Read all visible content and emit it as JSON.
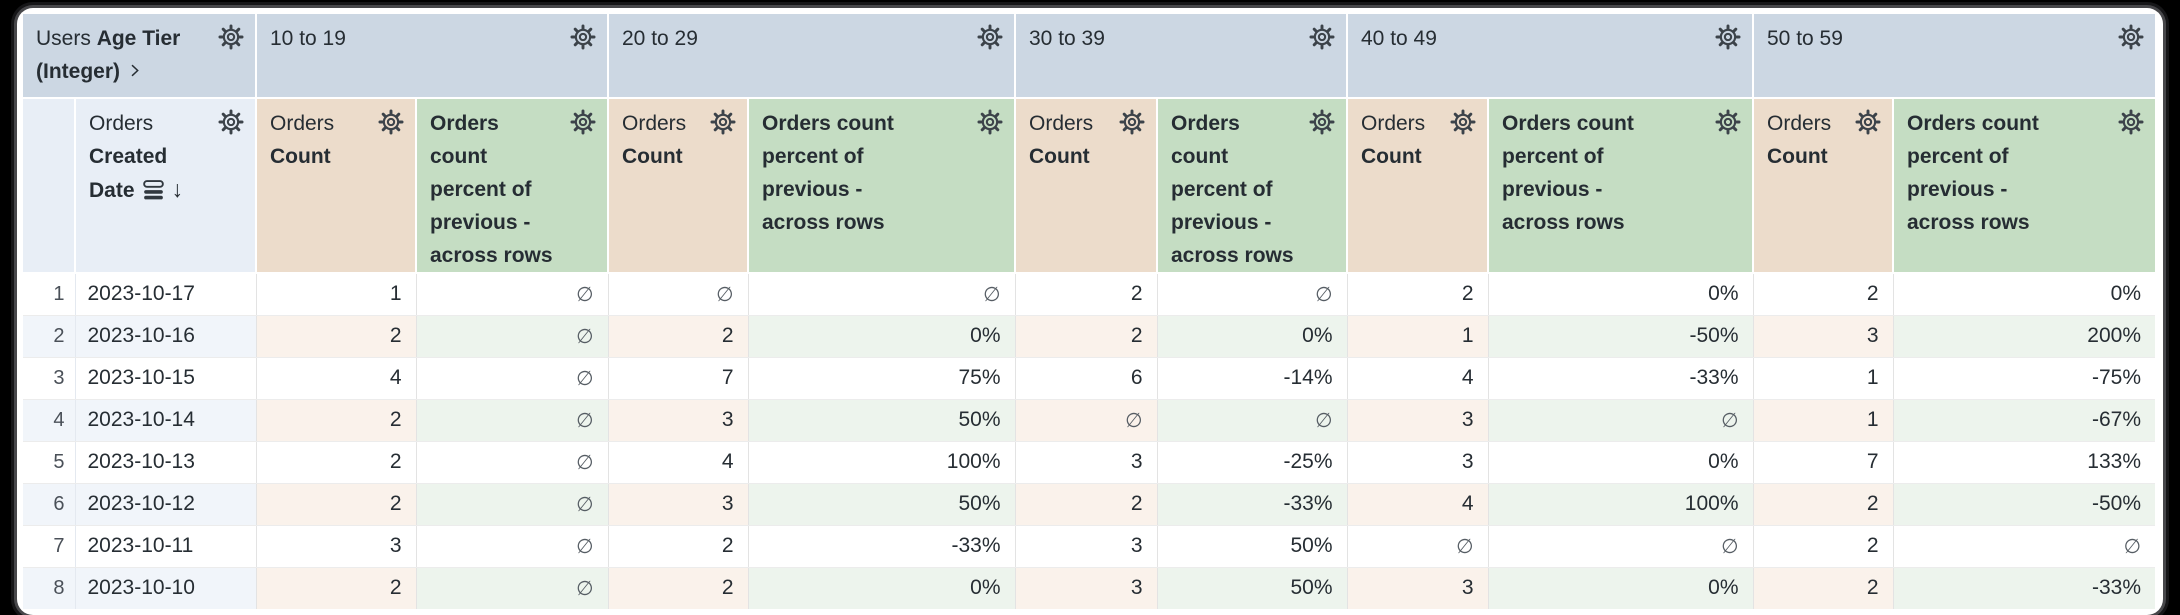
{
  "pivot_header": {
    "corner": {
      "view": "Users",
      "field_line1": "Age Tier",
      "field_line2": "(Integer)"
    },
    "row_dimension": {
      "view": "Orders",
      "field_line1": "Created",
      "field_line2": "Date",
      "sort_arrow": "↓"
    },
    "tiers": [
      "10 to 19",
      "20 to 29",
      "30 to 39",
      "40 to 49",
      "50 to 59"
    ],
    "measure": {
      "view": "Orders",
      "field": "Count"
    },
    "calc_label_lines": [
      "Orders count",
      "percent of",
      "previous -",
      "across rows"
    ]
  },
  "table": {
    "null_symbol": "∅",
    "columns_per_tier": [
      "Orders Count",
      "Orders count percent of previous - across rows"
    ],
    "rows": [
      {
        "num": "1",
        "date": "2023-10-17",
        "values": [
          "1",
          "∅",
          "∅",
          "∅",
          "2",
          "∅",
          "2",
          "0%",
          "2",
          "0%"
        ]
      },
      {
        "num": "2",
        "date": "2023-10-16",
        "values": [
          "2",
          "∅",
          "2",
          "0%",
          "2",
          "0%",
          "1",
          "-50%",
          "3",
          "200%"
        ]
      },
      {
        "num": "3",
        "date": "2023-10-15",
        "values": [
          "4",
          "∅",
          "7",
          "75%",
          "6",
          "-14%",
          "4",
          "-33%",
          "1",
          "-75%"
        ]
      },
      {
        "num": "4",
        "date": "2023-10-14",
        "values": [
          "2",
          "∅",
          "3",
          "50%",
          "∅",
          "∅",
          "3",
          "∅",
          "1",
          "-67%"
        ]
      },
      {
        "num": "5",
        "date": "2023-10-13",
        "values": [
          "2",
          "∅",
          "4",
          "100%",
          "3",
          "-25%",
          "3",
          "0%",
          "7",
          "133%"
        ]
      },
      {
        "num": "6",
        "date": "2023-10-12",
        "values": [
          "2",
          "∅",
          "3",
          "50%",
          "2",
          "-33%",
          "4",
          "100%",
          "2",
          "-50%"
        ]
      },
      {
        "num": "7",
        "date": "2023-10-11",
        "values": [
          "3",
          "∅",
          "2",
          "-33%",
          "3",
          "50%",
          "∅",
          "∅",
          "2",
          "∅"
        ]
      },
      {
        "num": "8",
        "date": "2023-10-10",
        "values": [
          "2",
          "∅",
          "2",
          "0%",
          "3",
          "50%",
          "3",
          "0%",
          "2",
          "-33%"
        ]
      }
    ]
  },
  "colors": {
    "header_blue": "#ccd7e3",
    "header_row_blue": "#e8eef6",
    "header_tan": "#ecdccb",
    "header_green": "#c5ddc3",
    "tint_blue": "#f1f5fa",
    "tint_tan": "#faf2eb",
    "tint_green": "#edf4ed",
    "text": "#262d33",
    "null_gray": "#565d64"
  }
}
